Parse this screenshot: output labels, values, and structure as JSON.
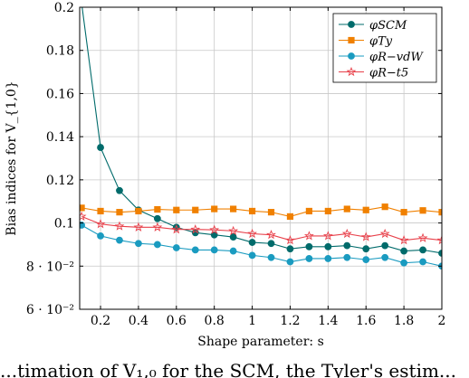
{
  "chart_data": {
    "type": "line",
    "xlabel": "Shape parameter: s",
    "ylabel": "Bias indices for V_{1,0}",
    "xlim": [
      0.09,
      2.0
    ],
    "ylim": [
      0.06,
      0.2
    ],
    "x_ticks": [
      0.2,
      0.4,
      0.6,
      0.8,
      1,
      1.2,
      1.4,
      1.6,
      1.8,
      2
    ],
    "x_tick_labels": [
      "0.2",
      "0.4",
      "0.6",
      "0.8",
      "1",
      "1.2",
      "1.4",
      "1.6",
      "1.8",
      "2"
    ],
    "y_ticks": [
      0.06,
      0.08,
      0.1,
      0.12,
      0.14,
      0.16,
      0.18,
      0.2
    ],
    "y_tick_labels": [
      "6 · 10⁻²",
      "8 · 10⁻²",
      "0.1",
      "0.12",
      "0.14",
      "0.16",
      "0.18",
      "0.2"
    ],
    "grid": true,
    "legend_position": "top-right",
    "x": [
      0.1,
      0.2,
      0.3,
      0.4,
      0.5,
      0.6,
      0.7,
      0.8,
      0.9,
      1.0,
      1.1,
      1.2,
      1.3,
      1.4,
      1.5,
      1.6,
      1.7,
      1.8,
      1.9,
      2.0
    ],
    "series": [
      {
        "name": "φSCM",
        "color": "#006b6b",
        "marker": "circle",
        "values": [
          0.202,
          0.135,
          0.115,
          0.106,
          0.102,
          0.098,
          0.0955,
          0.0945,
          0.0935,
          0.091,
          0.0905,
          0.088,
          0.089,
          0.089,
          0.0895,
          0.088,
          0.0895,
          0.087,
          0.0875,
          0.086
        ]
      },
      {
        "name": "φTy",
        "color": "#f08000",
        "marker": "square",
        "values": [
          0.107,
          0.1055,
          0.105,
          0.1055,
          0.1063,
          0.106,
          0.106,
          0.1065,
          0.1065,
          0.1055,
          0.105,
          0.103,
          0.1055,
          0.1055,
          0.1065,
          0.106,
          0.1075,
          0.105,
          0.1058,
          0.105
        ]
      },
      {
        "name": "φR−vdW",
        "color": "#1a9bc0",
        "marker": "circle",
        "values": [
          0.099,
          0.094,
          0.092,
          0.0905,
          0.09,
          0.0885,
          0.0875,
          0.0875,
          0.087,
          0.085,
          0.084,
          0.082,
          0.0835,
          0.0835,
          0.084,
          0.083,
          0.084,
          0.0815,
          0.082,
          0.08
        ]
      },
      {
        "name": "φR−t5",
        "color": "#e8404a",
        "marker": "star",
        "values": [
          0.103,
          0.0995,
          0.0985,
          0.098,
          0.098,
          0.097,
          0.097,
          0.0968,
          0.0963,
          0.095,
          0.0945,
          0.092,
          0.094,
          0.094,
          0.095,
          0.0935,
          0.095,
          0.092,
          0.093,
          0.092
        ]
      }
    ]
  },
  "caption": "...timation of V₁,₀ for the SCM, the Tyler's estim..."
}
